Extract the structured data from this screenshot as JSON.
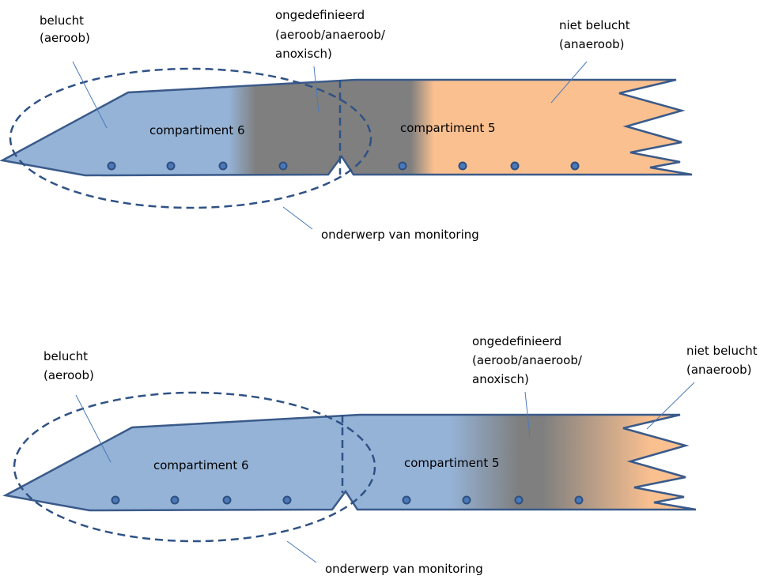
{
  "top": {
    "aerobic": [
      "belucht",
      "(aeroob)"
    ],
    "undefined_zone": [
      "ongedefinieerd",
      "(aeroob/anaeroob/",
      "anoxisch)"
    ],
    "anaerobic": [
      "niet belucht",
      "(anaeroob)"
    ],
    "compartment_6": "compartiment 6",
    "compartment_5": "compartiment 5",
    "monitoring": "onderwerp van monitoring"
  },
  "bottom": {
    "aerobic": [
      "belucht",
      "(aeroob)"
    ],
    "undefined_zone": [
      "ongedefinieerd",
      "(aeroob/anaeroob/",
      "anoxisch)"
    ],
    "anaerobic": [
      "niet belucht",
      "(anaeroob)"
    ],
    "compartment_6": "compartiment 6",
    "compartment_5": "compartiment 5",
    "monitoring": "onderwerp van monitoring"
  }
}
